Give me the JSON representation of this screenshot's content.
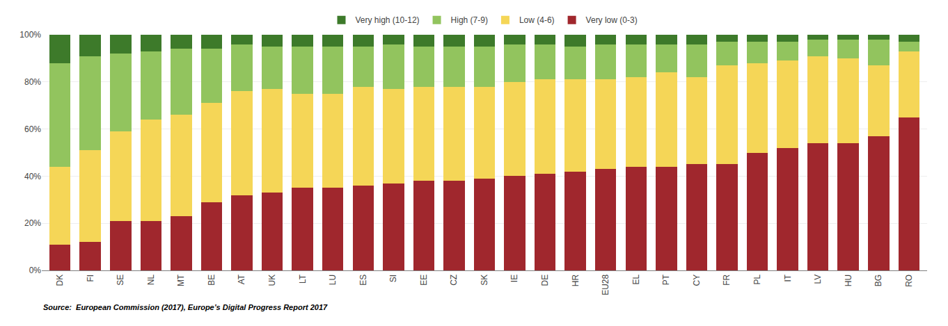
{
  "chart_data": {
    "type": "bar",
    "stacked": true,
    "categories": [
      "DK",
      "FI",
      "SE",
      "NL",
      "MT",
      "BE",
      "AT",
      "UK",
      "LT",
      "LU",
      "ES",
      "SI",
      "EE",
      "CZ",
      "SK",
      "IE",
      "DE",
      "HR",
      "EU28",
      "EL",
      "PT",
      "CY",
      "FR",
      "PL",
      "IT",
      "LV",
      "HU",
      "BG",
      "RO"
    ],
    "series": [
      {
        "name": "Very low (0-3)",
        "color": "#A0272D",
        "values": [
          11,
          12,
          21,
          21,
          23,
          29,
          32,
          33,
          35,
          35,
          36,
          37,
          38,
          38,
          39,
          40,
          41,
          42,
          43,
          44,
          44,
          45,
          45,
          50,
          52,
          54,
          54,
          57,
          65
        ]
      },
      {
        "name": "Low (4-6)",
        "color": "#F5D657",
        "values": [
          33,
          39,
          38,
          43,
          43,
          42,
          44,
          44,
          40,
          40,
          42,
          40,
          40,
          40,
          39,
          40,
          40,
          39,
          38,
          38,
          40,
          37,
          42,
          38,
          37,
          37,
          36,
          30,
          28
        ]
      },
      {
        "name": "High (7-9)",
        "color": "#92C45E",
        "values": [
          44,
          40,
          33,
          29,
          28,
          23,
          20,
          18,
          20,
          20,
          17,
          19,
          17,
          17,
          17,
          16,
          15,
          14,
          15,
          14,
          12,
          14,
          10,
          9,
          8,
          7,
          8,
          11,
          4
        ]
      },
      {
        "name": "Very high (10-12)",
        "color": "#3D7A2A",
        "values": [
          12,
          9,
          8,
          7,
          6,
          6,
          4,
          5,
          5,
          5,
          5,
          4,
          5,
          5,
          5,
          4,
          4,
          5,
          4,
          4,
          4,
          4,
          3,
          3,
          3,
          2,
          2,
          2,
          3
        ]
      }
    ],
    "ylim": [
      0,
      100
    ],
    "yticks": [
      {
        "value": 0,
        "label": "0%"
      },
      {
        "value": 20,
        "label": "20%"
      },
      {
        "value": 40,
        "label": "40%"
      },
      {
        "value": 60,
        "label": "60%"
      },
      {
        "value": 80,
        "label": "80%"
      },
      {
        "value": 100,
        "label": "100%"
      }
    ],
    "grid": true,
    "legend": "top",
    "annotations": [
      "Source:",
      "European Commission (2017), Europe’s Digital Progress Report 2017"
    ]
  }
}
